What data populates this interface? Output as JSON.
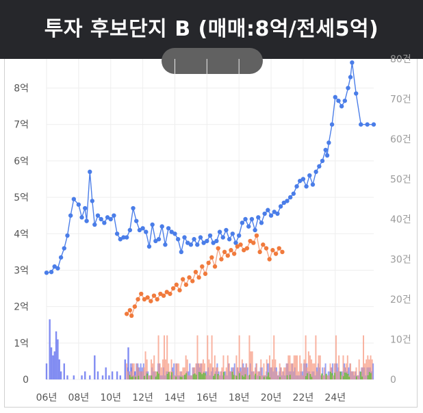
{
  "title": "투자 후보단지 B (매매:8억/전세5억)",
  "colors": {
    "sale": "#4a7de8",
    "jeonse": "#f07a3c",
    "jeonse_line": "#f4a88a",
    "vol_sale": "#6b78f0",
    "vol_jeonse": "#f7a08a",
    "vol_rent": "#5cbf3c",
    "grid": "#eeeeee"
  },
  "chart_data": {
    "type": "line",
    "title": "투자 후보단지 B (매매:8억/전세5억)",
    "xlabel": "",
    "ylabel": "",
    "x_range": [
      2006,
      2026.4
    ],
    "y_range": [
      0,
      8.8
    ],
    "y2_range": [
      0,
      80
    ],
    "x_ticks": [
      "06년",
      "08년",
      "10년",
      "12년",
      "14년",
      "16년",
      "18년",
      "20년",
      "22년",
      "24년"
    ],
    "y_ticks": [
      "0",
      "1억",
      "2억",
      "3억",
      "4억",
      "5억",
      "6억",
      "7억",
      "8억"
    ],
    "y2_ticks": [
      "0",
      "10건",
      "20건",
      "30건",
      "40건",
      "50건",
      "60건",
      "70건",
      "80건"
    ],
    "grid": true,
    "series": [
      {
        "name": "",
        "kind": "sale",
        "points": [
          [
            2006.0,
            2.93
          ],
          [
            2006.3,
            2.95
          ],
          [
            2006.5,
            3.1
          ],
          [
            2006.7,
            3.05
          ],
          [
            2006.9,
            3.35
          ],
          [
            2007.1,
            3.6
          ],
          [
            2007.3,
            3.95
          ],
          [
            2007.5,
            4.5
          ],
          [
            2007.7,
            4.95
          ],
          [
            2008.0,
            4.8
          ],
          [
            2008.2,
            4.45
          ],
          [
            2008.4,
            4.7
          ],
          [
            2008.5,
            4.35
          ],
          [
            2008.7,
            5.7
          ],
          [
            2008.85,
            4.9
          ],
          [
            2009.0,
            4.25
          ],
          [
            2009.2,
            4.5
          ],
          [
            2009.4,
            4.4
          ],
          [
            2009.6,
            4.3
          ],
          [
            2009.8,
            4.45
          ],
          [
            2010.0,
            4.4
          ],
          [
            2010.2,
            4.5
          ],
          [
            2010.4,
            4.0
          ],
          [
            2010.6,
            3.85
          ],
          [
            2010.8,
            3.9
          ],
          [
            2011.0,
            3.9
          ],
          [
            2011.2,
            4.1
          ],
          [
            2011.4,
            4.7
          ],
          [
            2011.6,
            4.35
          ],
          [
            2011.8,
            4.1
          ],
          [
            2012.0,
            4.15
          ],
          [
            2012.2,
            4.05
          ],
          [
            2012.4,
            3.65
          ],
          [
            2012.6,
            4.25
          ],
          [
            2012.8,
            3.8
          ],
          [
            2013.0,
            3.85
          ],
          [
            2013.2,
            4.2
          ],
          [
            2013.4,
            3.7
          ],
          [
            2013.6,
            4.15
          ],
          [
            2013.8,
            4.05
          ],
          [
            2014.0,
            4.0
          ],
          [
            2014.2,
            3.85
          ],
          [
            2014.4,
            3.5
          ],
          [
            2014.6,
            3.9
          ],
          [
            2014.8,
            3.75
          ],
          [
            2015.0,
            3.7
          ],
          [
            2015.2,
            3.85
          ],
          [
            2015.4,
            3.7
          ],
          [
            2015.6,
            3.9
          ],
          [
            2015.8,
            3.75
          ],
          [
            2016.0,
            3.8
          ],
          [
            2016.2,
            3.95
          ],
          [
            2016.4,
            3.75
          ],
          [
            2016.6,
            3.8
          ],
          [
            2016.8,
            4.05
          ],
          [
            2017.0,
            3.9
          ],
          [
            2017.2,
            4.1
          ],
          [
            2017.4,
            3.85
          ],
          [
            2017.6,
            4.0
          ],
          [
            2017.8,
            3.75
          ],
          [
            2018.0,
            3.95
          ],
          [
            2018.2,
            4.3
          ],
          [
            2018.4,
            4.4
          ],
          [
            2018.6,
            4.2
          ],
          [
            2018.8,
            4.4
          ],
          [
            2019.0,
            4.1
          ],
          [
            2019.2,
            4.45
          ],
          [
            2019.4,
            4.3
          ],
          [
            2019.6,
            4.55
          ],
          [
            2019.8,
            4.65
          ],
          [
            2020.0,
            4.5
          ],
          [
            2020.2,
            4.6
          ],
          [
            2020.4,
            4.55
          ],
          [
            2020.6,
            4.75
          ],
          [
            2020.8,
            4.85
          ],
          [
            2021.0,
            4.9
          ],
          [
            2021.2,
            5.0
          ],
          [
            2021.4,
            5.1
          ],
          [
            2021.6,
            5.3
          ],
          [
            2021.8,
            5.45
          ],
          [
            2022.0,
            5.5
          ],
          [
            2022.2,
            5.3
          ],
          [
            2022.4,
            5.6
          ],
          [
            2022.6,
            5.35
          ],
          [
            2022.8,
            5.7
          ],
          [
            2023.0,
            5.85
          ],
          [
            2023.2,
            6.0
          ],
          [
            2023.4,
            6.3
          ],
          [
            2023.5,
            6.15
          ],
          [
            2023.6,
            6.5
          ],
          [
            2023.8,
            7.0
          ],
          [
            2024.0,
            7.75
          ],
          [
            2024.2,
            7.65
          ],
          [
            2024.4,
            7.5
          ],
          [
            2024.6,
            7.65
          ],
          [
            2024.8,
            8.0
          ],
          [
            2024.95,
            8.3
          ],
          [
            2025.05,
            8.7
          ],
          [
            2025.3,
            7.85
          ],
          [
            2025.6,
            7.0
          ],
          [
            2026.0,
            7.0
          ],
          [
            2026.4,
            7.0
          ]
        ]
      },
      {
        "name": "",
        "kind": "jeonse",
        "points": [
          [
            2011.0,
            1.8
          ],
          [
            2011.2,
            1.9
          ],
          [
            2011.3,
            1.75
          ],
          [
            2011.5,
            2.0
          ],
          [
            2011.7,
            2.2
          ],
          [
            2011.9,
            2.35
          ],
          [
            2012.1,
            2.2
          ],
          [
            2012.3,
            2.25
          ],
          [
            2012.5,
            2.15
          ],
          [
            2012.7,
            2.3
          ],
          [
            2012.9,
            2.2
          ],
          [
            2013.1,
            2.35
          ],
          [
            2013.3,
            2.3
          ],
          [
            2013.5,
            2.4
          ],
          [
            2013.7,
            2.35
          ],
          [
            2013.9,
            2.5
          ],
          [
            2014.1,
            2.6
          ],
          [
            2014.3,
            2.45
          ],
          [
            2014.5,
            2.75
          ],
          [
            2014.7,
            2.6
          ],
          [
            2014.9,
            2.8
          ],
          [
            2015.1,
            2.7
          ],
          [
            2015.3,
            2.95
          ],
          [
            2015.5,
            2.8
          ],
          [
            2015.7,
            3.1
          ],
          [
            2015.9,
            2.9
          ],
          [
            2016.1,
            3.2
          ],
          [
            2016.3,
            3.35
          ],
          [
            2016.5,
            3.1
          ],
          [
            2016.7,
            3.6
          ],
          [
            2016.9,
            3.3
          ],
          [
            2017.1,
            3.5
          ],
          [
            2017.3,
            3.4
          ],
          [
            2017.5,
            3.55
          ],
          [
            2017.7,
            3.45
          ],
          [
            2017.9,
            3.65
          ],
          [
            2018.1,
            3.7
          ],
          [
            2018.3,
            3.55
          ],
          [
            2018.5,
            3.6
          ],
          [
            2018.7,
            3.8
          ],
          [
            2018.9,
            3.75
          ],
          [
            2019.1,
            3.95
          ],
          [
            2019.3,
            3.5
          ],
          [
            2019.5,
            3.7
          ],
          [
            2019.7,
            3.6
          ],
          [
            2019.9,
            3.3
          ],
          [
            2020.1,
            3.55
          ],
          [
            2020.3,
            3.45
          ],
          [
            2020.5,
            3.6
          ],
          [
            2020.7,
            3.5
          ]
        ]
      }
    ],
    "volume_bars": {
      "unit": "건",
      "sale_bars": [
        [
          2006.0,
          4
        ],
        [
          2006.2,
          15
        ],
        [
          2006.3,
          8
        ],
        [
          2006.4,
          6
        ],
        [
          2006.5,
          7
        ],
        [
          2006.6,
          12
        ],
        [
          2006.7,
          10
        ],
        [
          2006.8,
          5
        ],
        [
          2006.9,
          2
        ],
        [
          2007.1,
          4
        ],
        [
          2007.3,
          1
        ],
        [
          2007.7,
          1
        ],
        [
          2008.2,
          1
        ],
        [
          2008.4,
          2
        ],
        [
          2008.7,
          1
        ],
        [
          2009.0,
          6
        ],
        [
          2009.2,
          2
        ],
        [
          2009.5,
          1
        ],
        [
          2009.7,
          3
        ],
        [
          2009.9,
          1
        ],
        [
          2010.1,
          2
        ],
        [
          2010.4,
          2
        ],
        [
          2010.6,
          1
        ],
        [
          2010.9,
          5
        ],
        [
          2011.1,
          8
        ],
        [
          2011.3,
          3
        ],
        [
          2011.5,
          2
        ],
        [
          2011.7,
          3
        ],
        [
          2011.9,
          2
        ]
      ]
    }
  }
}
